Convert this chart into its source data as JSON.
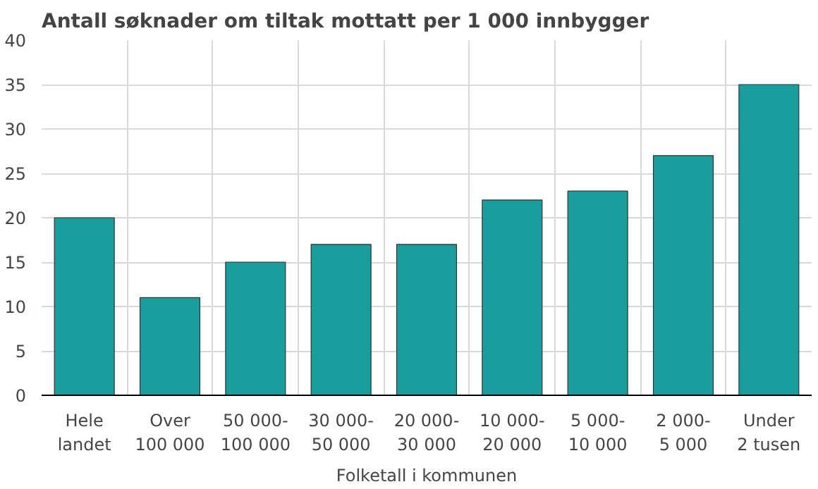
{
  "chart_data": {
    "type": "bar",
    "title": "Antall søknader om tiltak mottatt per 1 000 innbygger",
    "xlabel": "Folketall i kommunen",
    "categories": [
      "Hele\nlandet",
      "Over\n100 000",
      "50 000-\n100 000",
      "30 000-\n50 000",
      "20 000-\n30 000",
      "10 000-\n20 000",
      "5 000-\n10 000",
      "2 000-\n5 000",
      "Under\n2 tusen"
    ],
    "values": [
      20,
      11,
      15,
      17,
      17,
      22,
      23,
      27,
      35
    ],
    "color": "#1a9d9d",
    "ylim": [
      0,
      40
    ],
    "yticks": [
      0,
      5,
      10,
      15,
      20,
      25,
      30,
      35,
      40
    ],
    "grid": true
  }
}
